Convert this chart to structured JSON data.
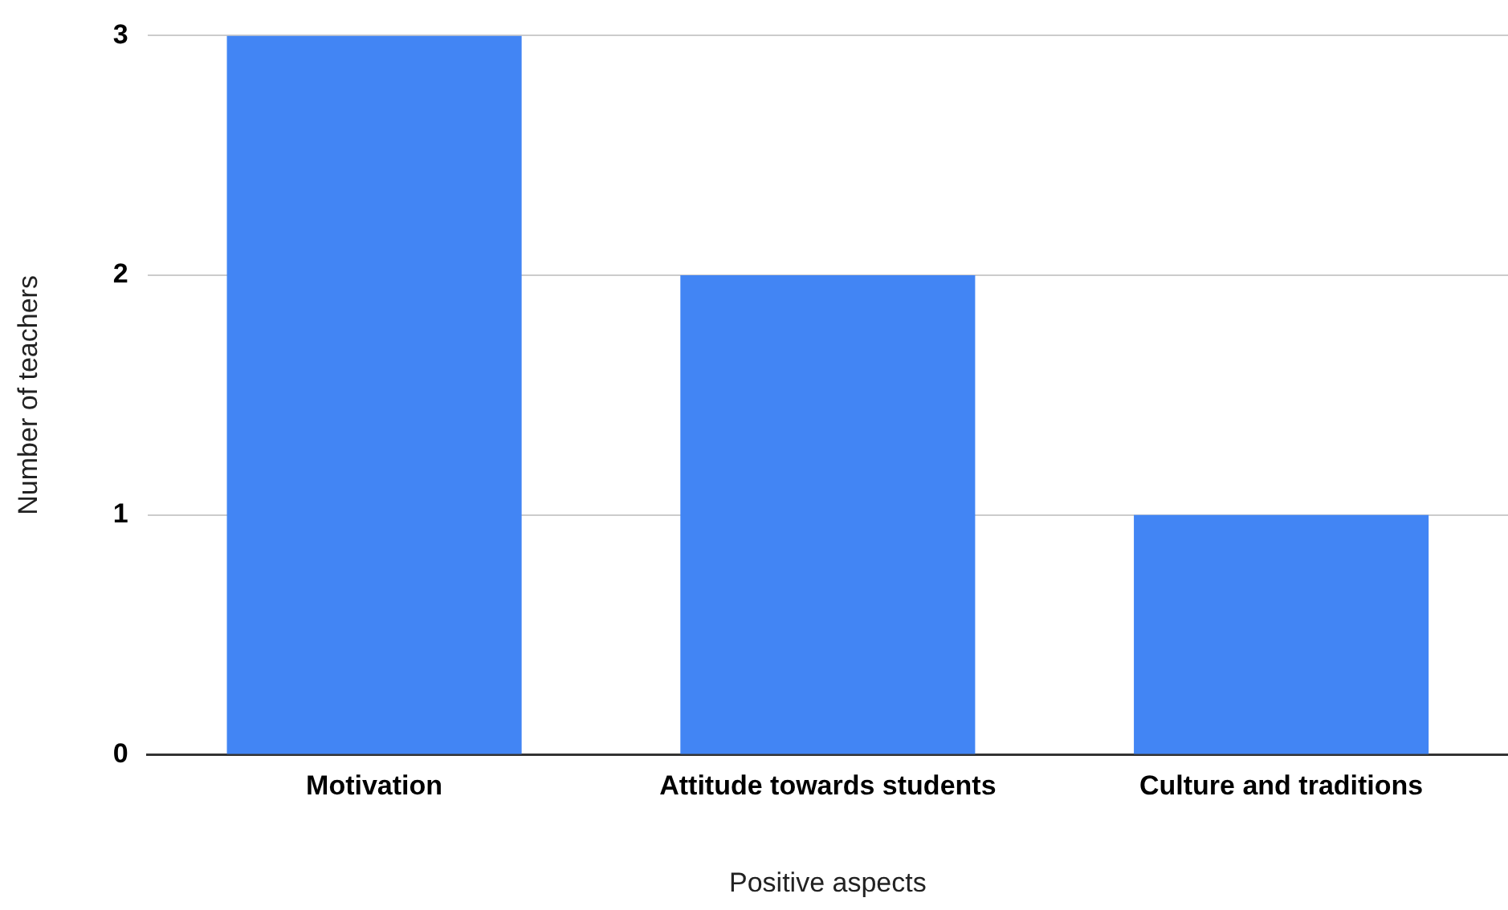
{
  "chart_data": {
    "type": "bar",
    "xlabel": "Positive aspects",
    "ylabel": "Number of teachers",
    "categories": [
      "Motivation",
      "Attitude towards students",
      "Culture and traditions"
    ],
    "values": [
      3,
      2,
      1
    ],
    "color": "#4285f4",
    "ylim": [
      0,
      3
    ],
    "yticks": [
      0,
      1,
      2,
      3
    ],
    "grid": "y",
    "legend": false
  }
}
